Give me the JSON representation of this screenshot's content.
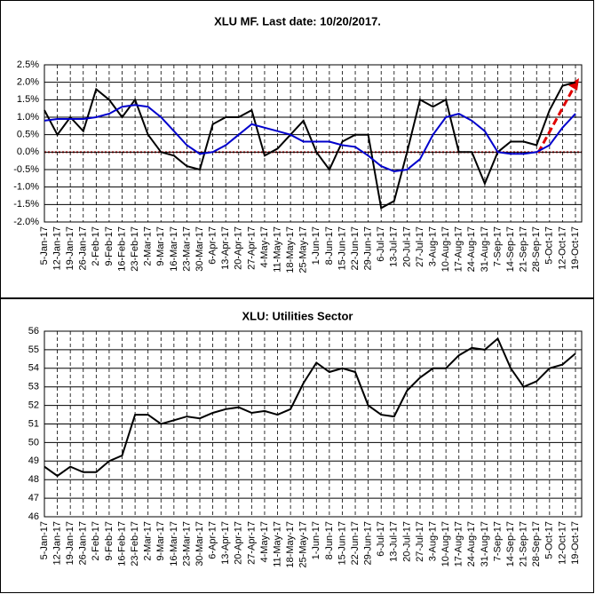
{
  "chart_data": [
    {
      "type": "line",
      "title": "XLU MF. Last date: 10/20/2017.",
      "categories": [
        "5-Jan-17",
        "12-Jan-17",
        "19-Jan-17",
        "26-Jan-17",
        "2-Feb-17",
        "9-Feb-17",
        "16-Feb-17",
        "23-Feb-17",
        "2-Mar-17",
        "9-Mar-17",
        "16-Mar-17",
        "23-Mar-17",
        "30-Mar-17",
        "6-Apr-17",
        "13-Apr-17",
        "20-Apr-17",
        "27-Apr-17",
        "4-May-17",
        "11-May-17",
        "18-May-17",
        "25-May-17",
        "1-Jun-17",
        "8-Jun-17",
        "15-Jun-17",
        "22-Jun-17",
        "29-Jun-17",
        "6-Jul-17",
        "13-Jul-17",
        "20-Jul-17",
        "27-Jul-17",
        "3-Aug-17",
        "10-Aug-17",
        "17-Aug-17",
        "24-Aug-17",
        "31-Aug-17",
        "7-Sep-17",
        "14-Sep-17",
        "21-Sep-17",
        "28-Sep-17",
        "5-Oct-17",
        "12-Oct-17",
        "19-Oct-17"
      ],
      "series": [
        {
          "color": "#000000",
          "values": [
            1.2,
            0.5,
            1.0,
            0.6,
            1.8,
            1.5,
            1.0,
            1.5,
            0.5,
            0.0,
            -0.1,
            -0.4,
            -0.5,
            0.8,
            1.0,
            1.0,
            1.2,
            -0.1,
            0.1,
            0.5,
            0.9,
            0.0,
            -0.5,
            0.3,
            0.5,
            0.5,
            -1.6,
            -1.4,
            0.0,
            1.5,
            1.3,
            1.5,
            0.0,
            0.0,
            -0.9,
            0.0,
            0.3,
            0.3,
            0.2,
            1.2,
            1.9,
            2.0
          ]
        },
        {
          "color": "#0000cc",
          "values": [
            0.9,
            0.95,
            0.95,
            0.95,
            1.0,
            1.1,
            1.3,
            1.35,
            1.3,
            1.0,
            0.6,
            0.2,
            -0.05,
            0.0,
            0.2,
            0.5,
            0.8,
            0.7,
            0.6,
            0.5,
            0.3,
            0.3,
            0.3,
            0.2,
            0.15,
            -0.1,
            -0.4,
            -0.55,
            -0.5,
            -0.2,
            0.5,
            1.0,
            1.1,
            0.9,
            0.6,
            0.0,
            -0.05,
            -0.05,
            0.0,
            0.2,
            0.7,
            1.1
          ]
        }
      ],
      "ylim": [
        -2.0,
        2.5
      ],
      "yticks": [
        {
          "value": -2.0,
          "label": "-2.0%"
        },
        {
          "value": -1.5,
          "label": "-1.5%"
        },
        {
          "value": -1.0,
          "label": "-1.0%"
        },
        {
          "value": -0.5,
          "label": "-0.5%"
        },
        {
          "value": 0.0,
          "label": "0.0%"
        },
        {
          "value": 0.5,
          "label": "0.5%"
        },
        {
          "value": 1.0,
          "label": "1.0%"
        },
        {
          "value": 1.5,
          "label": "1.5%"
        },
        {
          "value": 2.0,
          "label": "2.0%"
        },
        {
          "value": 2.5,
          "label": "2.5%"
        }
      ],
      "grid": true
    },
    {
      "type": "line",
      "title": "XLU: Utilities Sector",
      "categories": [
        "5-Jan-17",
        "12-Jan-17",
        "19-Jan-17",
        "26-Jan-17",
        "2-Feb-17",
        "9-Feb-17",
        "16-Feb-17",
        "23-Feb-17",
        "2-Mar-17",
        "9-Mar-17",
        "16-Mar-17",
        "23-Mar-17",
        "30-Mar-17",
        "6-Apr-17",
        "13-Apr-17",
        "20-Apr-17",
        "27-Apr-17",
        "4-May-17",
        "11-May-17",
        "18-May-17",
        "25-May-17",
        "1-Jun-17",
        "8-Jun-17",
        "15-Jun-17",
        "22-Jun-17",
        "29-Jun-17",
        "6-Jul-17",
        "13-Jul-17",
        "20-Jul-17",
        "27-Jul-17",
        "3-Aug-17",
        "10-Aug-17",
        "17-Aug-17",
        "24-Aug-17",
        "31-Aug-17",
        "7-Sep-17",
        "14-Sep-17",
        "21-Sep-17",
        "28-Sep-17",
        "5-Oct-17",
        "12-Oct-17",
        "19-Oct-17"
      ],
      "series": [
        {
          "color": "#000000",
          "values": [
            48.7,
            48.2,
            48.7,
            48.4,
            48.4,
            49.0,
            49.3,
            51.5,
            51.5,
            51.0,
            51.2,
            51.4,
            51.3,
            51.6,
            51.8,
            51.9,
            51.6,
            51.7,
            51.5,
            51.8,
            53.2,
            54.3,
            53.8,
            54.0,
            53.8,
            52.0,
            51.5,
            51.4,
            52.8,
            53.5,
            54.0,
            54.0,
            54.7,
            55.1,
            55.0,
            55.6,
            54.0,
            53.0,
            53.3,
            54.0,
            54.2,
            54.8
          ]
        }
      ],
      "ylim": [
        46,
        56
      ],
      "yticks": [
        46,
        47,
        48,
        49,
        50,
        51,
        52,
        53,
        54,
        55,
        56
      ],
      "grid": true
    }
  ]
}
